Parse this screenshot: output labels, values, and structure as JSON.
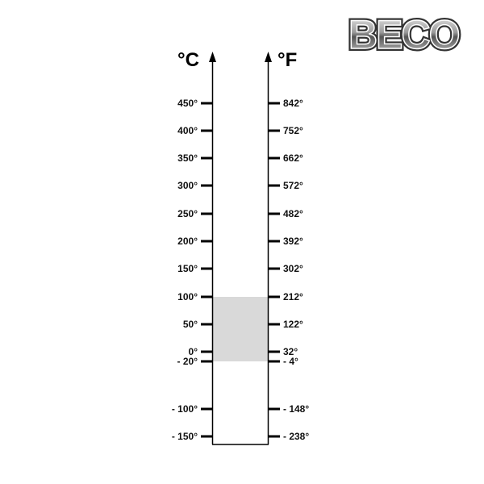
{
  "logo": {
    "text": "BECO"
  },
  "scale": {
    "left_unit": "°C",
    "right_unit": "°F",
    "highlight_color": "#d9d9d9",
    "highlight_range_celsius": [
      -20,
      100
    ],
    "ticks": [
      {
        "c": "450°",
        "f": "842°"
      },
      {
        "c": "400°",
        "f": "752°"
      },
      {
        "c": "350°",
        "f": "662°"
      },
      {
        "c": "300°",
        "f": "572°"
      },
      {
        "c": "250°",
        "f": "482°"
      },
      {
        "c": "200°",
        "f": "392°"
      },
      {
        "c": "150°",
        "f": "302°"
      },
      {
        "c": "100°",
        "f": "212°"
      },
      {
        "c": "50°",
        "f": "122°"
      },
      {
        "c": "0°",
        "f": "32°"
      },
      {
        "c": "- 20°",
        "f": "- 4°"
      },
      {
        "c": "- 100°",
        "f": "- 148°"
      },
      {
        "c": "- 150°",
        "f": "- 238°"
      }
    ]
  }
}
